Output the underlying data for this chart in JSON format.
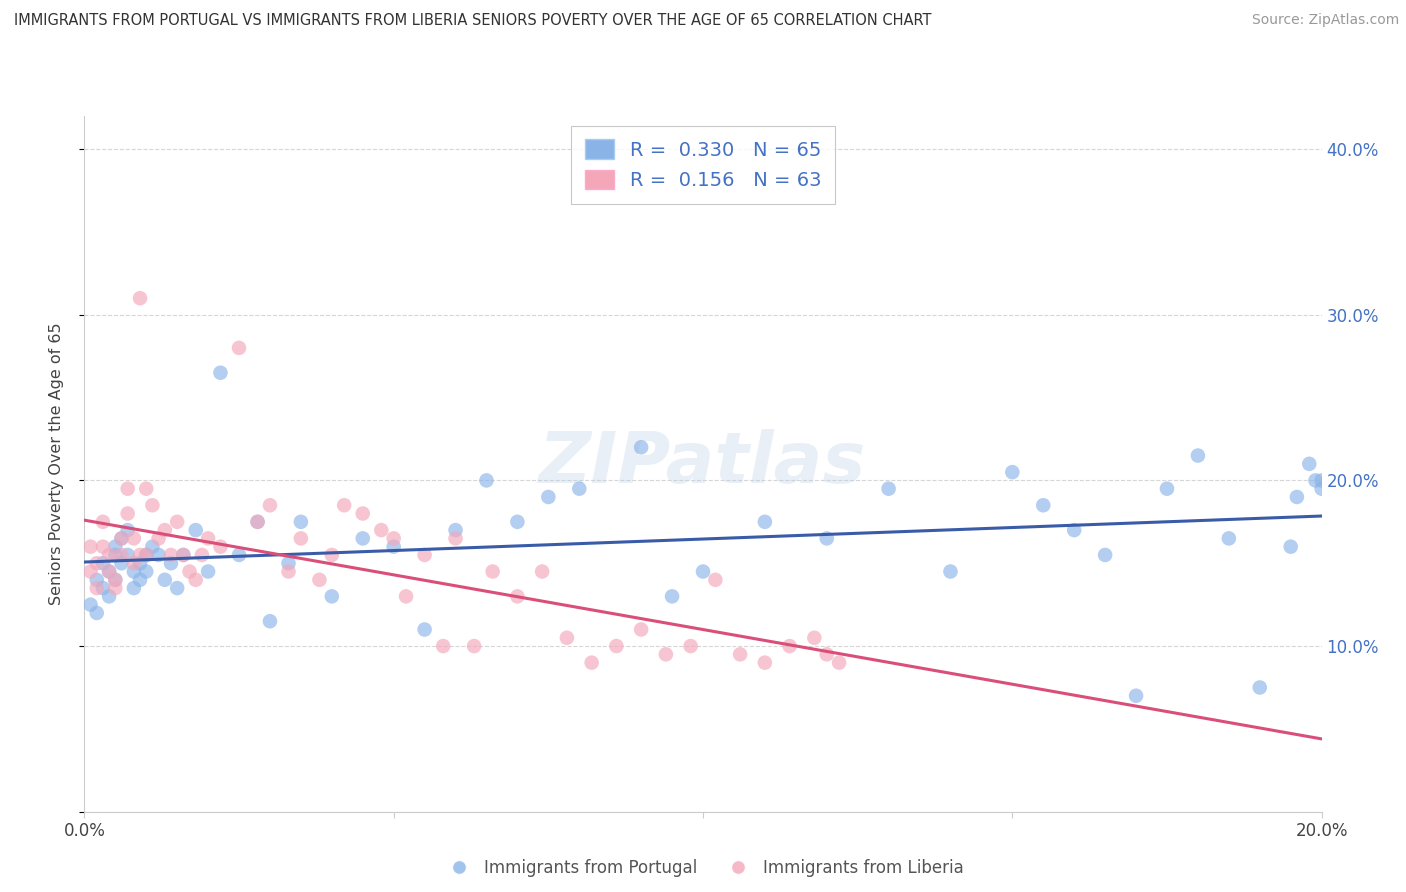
{
  "title": "IMMIGRANTS FROM PORTUGAL VS IMMIGRANTS FROM LIBERIA SENIORS POVERTY OVER THE AGE OF 65 CORRELATION CHART",
  "source": "Source: ZipAtlas.com",
  "ylabel": "Seniors Poverty Over the Age of 65",
  "legend_label1": "Immigrants from Portugal",
  "legend_label2": "Immigrants from Liberia",
  "R1": 0.33,
  "N1": 65,
  "R2": 0.156,
  "N2": 63,
  "color1": "#8ab4e8",
  "color2": "#f4a7b9",
  "line_color1": "#3a5ca8",
  "line_color2": "#d94f7a",
  "xlim": [
    0.0,
    0.2
  ],
  "ylim": [
    0.0,
    0.42
  ],
  "xticks": [
    0.0,
    0.05,
    0.1,
    0.15,
    0.2
  ],
  "yticks": [
    0.0,
    0.1,
    0.2,
    0.3,
    0.4
  ],
  "xtick_labels": [
    "0.0%",
    "",
    "",
    "",
    "20.0%"
  ],
  "ytick_labels_right": [
    "",
    "10.0%",
    "20.0%",
    "30.0%",
    "40.0%"
  ],
  "portugal_x": [
    0.001,
    0.002,
    0.002,
    0.003,
    0.003,
    0.004,
    0.004,
    0.005,
    0.005,
    0.005,
    0.006,
    0.006,
    0.007,
    0.007,
    0.008,
    0.008,
    0.009,
    0.009,
    0.01,
    0.01,
    0.011,
    0.012,
    0.013,
    0.014,
    0.015,
    0.016,
    0.018,
    0.02,
    0.022,
    0.025,
    0.028,
    0.03,
    0.033,
    0.035,
    0.04,
    0.045,
    0.05,
    0.055,
    0.06,
    0.065,
    0.07,
    0.075,
    0.08,
    0.09,
    0.095,
    0.1,
    0.11,
    0.12,
    0.13,
    0.14,
    0.15,
    0.155,
    0.16,
    0.165,
    0.17,
    0.175,
    0.18,
    0.185,
    0.19,
    0.195,
    0.196,
    0.198,
    0.199,
    0.2,
    0.2
  ],
  "portugal_y": [
    0.125,
    0.14,
    0.12,
    0.15,
    0.135,
    0.145,
    0.13,
    0.16,
    0.14,
    0.155,
    0.15,
    0.165,
    0.155,
    0.17,
    0.145,
    0.135,
    0.15,
    0.14,
    0.155,
    0.145,
    0.16,
    0.155,
    0.14,
    0.15,
    0.135,
    0.155,
    0.17,
    0.145,
    0.265,
    0.155,
    0.175,
    0.115,
    0.15,
    0.175,
    0.13,
    0.165,
    0.16,
    0.11,
    0.17,
    0.2,
    0.175,
    0.19,
    0.195,
    0.22,
    0.13,
    0.145,
    0.175,
    0.165,
    0.195,
    0.145,
    0.205,
    0.185,
    0.17,
    0.155,
    0.07,
    0.195,
    0.215,
    0.165,
    0.075,
    0.16,
    0.19,
    0.21,
    0.2,
    0.195,
    0.2
  ],
  "liberia_x": [
    0.001,
    0.001,
    0.002,
    0.002,
    0.003,
    0.003,
    0.004,
    0.004,
    0.005,
    0.005,
    0.006,
    0.006,
    0.007,
    0.007,
    0.008,
    0.008,
    0.009,
    0.009,
    0.01,
    0.01,
    0.011,
    0.012,
    0.013,
    0.014,
    0.015,
    0.016,
    0.017,
    0.018,
    0.019,
    0.02,
    0.022,
    0.025,
    0.028,
    0.03,
    0.033,
    0.035,
    0.038,
    0.04,
    0.042,
    0.045,
    0.048,
    0.05,
    0.052,
    0.055,
    0.058,
    0.06,
    0.063,
    0.066,
    0.07,
    0.074,
    0.078,
    0.082,
    0.086,
    0.09,
    0.094,
    0.098,
    0.102,
    0.106,
    0.11,
    0.114,
    0.118,
    0.12,
    0.122
  ],
  "liberia_y": [
    0.145,
    0.16,
    0.15,
    0.135,
    0.16,
    0.175,
    0.155,
    0.145,
    0.14,
    0.135,
    0.165,
    0.155,
    0.18,
    0.195,
    0.15,
    0.165,
    0.31,
    0.155,
    0.195,
    0.155,
    0.185,
    0.165,
    0.17,
    0.155,
    0.175,
    0.155,
    0.145,
    0.14,
    0.155,
    0.165,
    0.16,
    0.28,
    0.175,
    0.185,
    0.145,
    0.165,
    0.14,
    0.155,
    0.185,
    0.18,
    0.17,
    0.165,
    0.13,
    0.155,
    0.1,
    0.165,
    0.1,
    0.145,
    0.13,
    0.145,
    0.105,
    0.09,
    0.1,
    0.11,
    0.095,
    0.1,
    0.14,
    0.095,
    0.09,
    0.1,
    0.105,
    0.095,
    0.09
  ],
  "watermark": "ZIPatlas",
  "background_color": "#ffffff",
  "grid_color": "#cccccc"
}
